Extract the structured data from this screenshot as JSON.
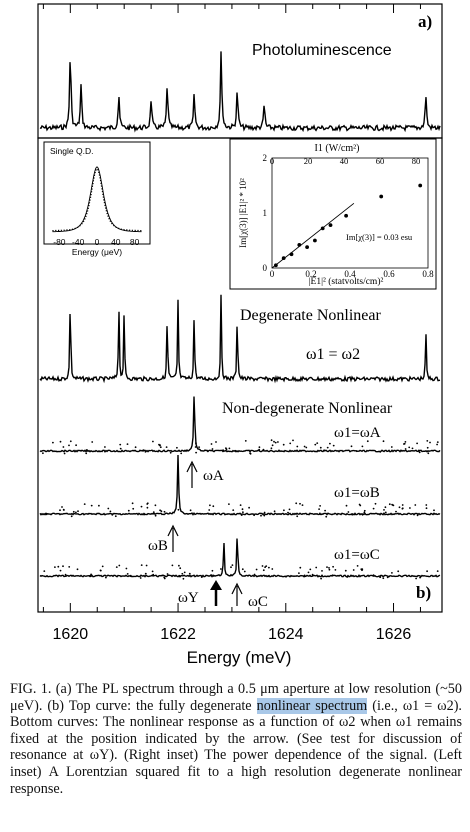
{
  "figure": {
    "panel_a_label": "a)",
    "panel_b_label": "b)",
    "pl_label": "Photoluminescence",
    "degenerate_label": "Degenerate Nonlinear",
    "nondegenerate_label": "Non-degenerate Nonlinear",
    "omega12_label": "ω1 = ω2",
    "omegaA_label": "ω1=ωA",
    "omegaB_label": "ω1=ωB",
    "omegaC_label": "ω1=ωC",
    "arrowA_label": "ωA",
    "arrowB_label": "ωB",
    "arrowY_label": "ωY",
    "arrowC_label": "ωC",
    "left_inset": {
      "title": "Single Q.D.",
      "xlabel": "Energy (μeV)"
    },
    "right_inset": {
      "top_label": "I1 (W/cm²)",
      "xlabel": "|E1|² (statvolts/cm)²",
      "ylabel": "Im[χ(3)] |E1|² * 10²",
      "annotation": "Im[χ(3)] = 0.03 esu"
    }
  },
  "chart_data": {
    "type": "line",
    "xlabel": "Energy (meV)",
    "xlim": [
      1619.4,
      1626.9
    ],
    "x_ticks": [
      "1620",
      "1622",
      "1624",
      "1626"
    ],
    "panels": [
      "Photoluminescence",
      "Degenerate Nonlinear",
      "ω1=ωA",
      "ω1=ωB",
      "ω1=ωC"
    ],
    "pl_peaks": [
      {
        "x": 1620.0,
        "h": 0.8
      },
      {
        "x": 1620.2,
        "h": 0.45
      },
      {
        "x": 1620.9,
        "h": 0.35
      },
      {
        "x": 1621.5,
        "h": 0.3
      },
      {
        "x": 1621.8,
        "h": 0.45
      },
      {
        "x": 1622.3,
        "h": 0.35
      },
      {
        "x": 1622.8,
        "h": 0.8
      },
      {
        "x": 1623.1,
        "h": 0.4
      },
      {
        "x": 1623.6,
        "h": 0.25
      },
      {
        "x": 1626.6,
        "h": 0.35
      }
    ],
    "degenerate_peaks": [
      {
        "x": 1620.0,
        "h": 0.95
      },
      {
        "x": 1620.9,
        "h": 0.8
      },
      {
        "x": 1621.0,
        "h": 0.7
      },
      {
        "x": 1621.8,
        "h": 0.7
      },
      {
        "x": 1622.0,
        "h": 0.8
      },
      {
        "x": 1622.3,
        "h": 0.7
      },
      {
        "x": 1622.8,
        "h": 0.9
      },
      {
        "x": 1623.1,
        "h": 0.75
      },
      {
        "x": 1626.6,
        "h": 0.5
      }
    ],
    "arrow_positions": {
      "A": 1622.3,
      "B": 1622.0,
      "Y": 1622.85,
      "C": 1623.1
    },
    "left_inset": {
      "type": "line",
      "xlim": [
        -100,
        100
      ],
      "x_ticks": [
        "-80",
        "-40",
        "0",
        "40",
        "80"
      ],
      "center": 0,
      "fwhm": 50
    },
    "right_inset": {
      "type": "scatter",
      "xlim": [
        0,
        0.8
      ],
      "ylim": [
        0,
        2
      ],
      "x_ticks": [
        "0",
        "0.2",
        "0.4",
        "0.6",
        "0.8"
      ],
      "y_ticks": [
        "0",
        "1",
        "2"
      ],
      "top_ticks": [
        "0",
        "20",
        "40",
        "60",
        "80"
      ],
      "points": [
        {
          "x": 0.02,
          "y": 0.05
        },
        {
          "x": 0.06,
          "y": 0.18
        },
        {
          "x": 0.1,
          "y": 0.25
        },
        {
          "x": 0.14,
          "y": 0.42
        },
        {
          "x": 0.18,
          "y": 0.38
        },
        {
          "x": 0.22,
          "y": 0.5
        },
        {
          "x": 0.26,
          "y": 0.72
        },
        {
          "x": 0.3,
          "y": 0.78
        },
        {
          "x": 0.38,
          "y": 0.95
        },
        {
          "x": 0.56,
          "y": 1.3
        },
        {
          "x": 0.76,
          "y": 1.5
        }
      ],
      "fit": {
        "slope": 2.8,
        "intercept": 0.0,
        "x_end": 0.42
      }
    }
  },
  "caption": {
    "p1": "FIG. 1.   (a) The PL spectrum through a 0.5 μm aperture at low resolution (~50 μeV).  (b) Top curve: the fully degenerate ",
    "highlight": "nonlinear spectrum",
    "p2": " (i.e., ω1 = ω2).  Bottom curves:  The nonlinear response as a function of ω2 when ω1 remains fixed at the position indicated by the arrow.  (See test for discussion of resonance at ωY).  (Right inset)  The power dependence of the signal.  (Left inset) A Lorentzian squared fit to a high resolution degenerate nonlinear response."
  }
}
